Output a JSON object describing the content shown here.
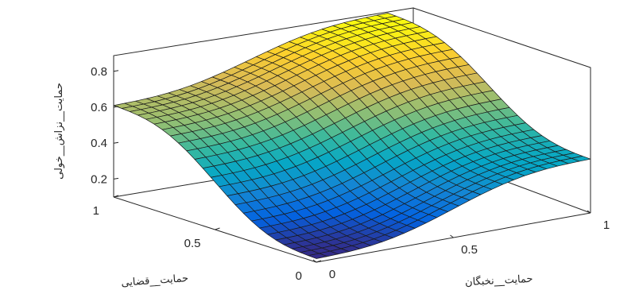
{
  "chart_data": {
    "type": "surface",
    "xlabel": "حمایت__نخبگان",
    "ylabel": "حمایت__قضایی",
    "zlabel": "حمایت__نزاش__خولی",
    "xlim": [
      0,
      1
    ],
    "ylim": [
      0,
      1
    ],
    "zlim": [
      0.1,
      0.9
    ],
    "x_ticks": [
      "0",
      "0.5",
      "1"
    ],
    "y_ticks": [
      "0",
      "0.5",
      "1"
    ],
    "z_ticks": [
      "0.2",
      "0.4",
      "0.6",
      "0.8"
    ],
    "grid_size": 25,
    "corner_values": {
      "x0_y0": 0.12,
      "x1_y0": 0.4,
      "x0_y1": 0.61,
      "x1_y1": 0.85
    },
    "colormap": [
      "#352a87",
      "#0363e1",
      "#1485d4",
      "#06a7c6",
      "#38b99e",
      "#92bf73",
      "#d9ba56",
      "#fcce2e",
      "#f9fb0e"
    ]
  }
}
